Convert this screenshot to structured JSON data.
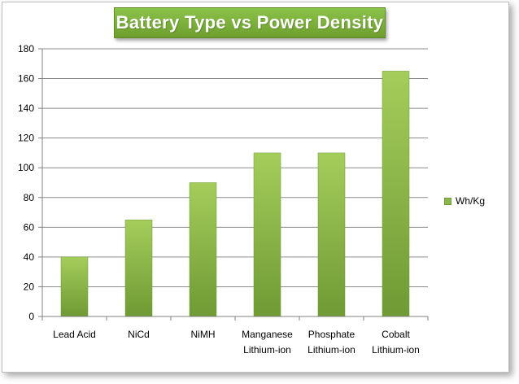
{
  "chart_data": {
    "type": "bar",
    "title": "Battery Type vs Power Density",
    "categories": [
      [
        "Lead Acid"
      ],
      [
        "NiCd"
      ],
      [
        "NiMH"
      ],
      [
        "Manganese",
        "Lithium-ion"
      ],
      [
        "Phosphate",
        "Lithium-ion"
      ],
      [
        "Cobalt",
        "Lithium-ion"
      ]
    ],
    "series": [
      {
        "name": "Wh/Kg",
        "values": [
          40,
          65,
          90,
          110,
          110,
          165
        ]
      }
    ],
    "ylim": [
      0,
      180
    ],
    "yticks": [
      0,
      20,
      40,
      60,
      80,
      100,
      120,
      140,
      160,
      180
    ],
    "grid": true,
    "legend_position": "right",
    "colors": {
      "bar": "#8ab84a",
      "bar_light": "#a4cd5b",
      "bar_dark": "#6f9a34",
      "title_bg": "#7cb342"
    }
  }
}
